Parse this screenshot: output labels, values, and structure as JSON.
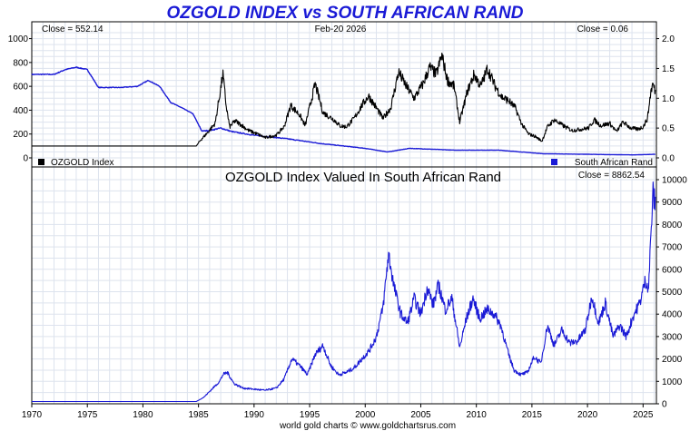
{
  "chart_data": [
    {
      "type": "line",
      "title": "OZGOLD INDEX vs SOUTH AFRICAN RAND",
      "date_label": "Feb-20  2026",
      "close_left": "Close = 552.14",
      "close_right": "Close = 0.06",
      "x_ticks": [
        "1970",
        "1975",
        "1980",
        "1985",
        "1990",
        "1995",
        "2000",
        "2005",
        "2010",
        "2015",
        "2020",
        "2025"
      ],
      "xlim": [
        1970,
        2026.2
      ],
      "left_axis": {
        "ylim": [
          0,
          1050
        ],
        "ticks": [
          "0",
          "200",
          "400",
          "600",
          "800",
          "1000"
        ]
      },
      "right_axis": {
        "ylim": [
          0,
          2.1
        ],
        "ticks": [
          "0.0",
          "0.5",
          "1.0",
          "1.5",
          "2.0"
        ]
      },
      "series": [
        {
          "name": "OZGOLD Index",
          "axis": "left",
          "color": "#000000",
          "x": [
            1970,
            1984.8,
            1985.2,
            1985.8,
            1986.5,
            1987.2,
            1987.5,
            1987.8,
            1988.3,
            1988.8,
            1989.5,
            1990.3,
            1991,
            1992,
            1992.7,
            1993.3,
            1994.1,
            1994.6,
            1995.5,
            1996.2,
            1997.2,
            1997.7,
            1998.3,
            1999,
            1999.7,
            2000.3,
            2001,
            2001.6,
            2002.3,
            2003,
            2003.7,
            2004.4,
            2005.2,
            2005.8,
            2006.4,
            2006.9,
            2007.4,
            2008,
            2008.5,
            2009.2,
            2009.8,
            2010.4,
            2011,
            2011.7,
            2012.3,
            2012.9,
            2013.5,
            2014.1,
            2014.7,
            2015.3,
            2015.9,
            2016.4,
            2017,
            2017.8,
            2018.6,
            2019.4,
            2020.1,
            2020.6,
            2021.2,
            2022,
            2022.6,
            2023.2,
            2023.9,
            2024.5,
            2025,
            2025.4,
            2025.7,
            2025.9,
            2026.1
          ],
          "values": [
            100,
            100,
            150,
            210,
            290,
            700,
            430,
            260,
            310,
            280,
            230,
            200,
            170,
            190,
            260,
            440,
            360,
            270,
            620,
            380,
            320,
            270,
            260,
            330,
            440,
            520,
            420,
            330,
            420,
            720,
            600,
            500,
            620,
            760,
            700,
            860,
            650,
            600,
            300,
            560,
            700,
            600,
            750,
            600,
            510,
            480,
            420,
            280,
            200,
            180,
            140,
            260,
            320,
            270,
            230,
            240,
            250,
            320,
            270,
            290,
            220,
            300,
            250,
            240,
            260,
            330,
            560,
            620,
            552
          ]
        },
        {
          "name": "South African Rand",
          "axis": "right",
          "color": "#1a1ad6",
          "x": [
            1970,
            1972,
            1973,
            1974,
            1975,
            1976,
            1978,
            1979.5,
            1980.5,
            1981.5,
            1982.5,
            1983.5,
            1984.5,
            1985.3,
            1986,
            1987,
            1988,
            1990,
            1993,
            1996,
            1998,
            2000,
            2002,
            2004,
            2008,
            2012,
            2016,
            2020,
            2024,
            2026.1
          ],
          "values": [
            1.4,
            1.4,
            1.48,
            1.52,
            1.48,
            1.18,
            1.18,
            1.2,
            1.3,
            1.2,
            0.93,
            0.84,
            0.74,
            0.45,
            0.46,
            0.5,
            0.44,
            0.38,
            0.32,
            0.24,
            0.2,
            0.16,
            0.1,
            0.16,
            0.13,
            0.13,
            0.07,
            0.06,
            0.05,
            0.06
          ]
        }
      ],
      "legend": [
        "OZGOLD Index",
        "South African Rand"
      ]
    },
    {
      "type": "line",
      "title": "OZGOLD Index Valued In South African Rand",
      "close": "Close = 8862.54",
      "xlim": [
        1970,
        2026.2
      ],
      "right_axis": {
        "ylim": [
          0,
          10000
        ],
        "ticks": [
          "0",
          "1000",
          "2000",
          "3000",
          "4000",
          "5000",
          "6000",
          "7000",
          "8000",
          "9000",
          "10000"
        ]
      },
      "series": [
        {
          "name": "OZGOLD Index Valued In South African Rand",
          "color": "#1a1ad6",
          "x": [
            1970,
            1984.8,
            1985.5,
            1986.3,
            1986.9,
            1987.2,
            1987.6,
            1988.2,
            1989,
            1990,
            1991,
            1992,
            1992.7,
            1993.4,
            1994.1,
            1994.8,
            1995.5,
            1996.2,
            1996.9,
            1997.6,
            1998.3,
            1999,
            1999.7,
            2000.4,
            2001,
            2001.6,
            2002.1,
            2002.6,
            2003.2,
            2003.8,
            2004.4,
            2005,
            2005.6,
            2006.1,
            2006.6,
            2007.2,
            2007.8,
            2008.5,
            2009.1,
            2009.7,
            2010.3,
            2011,
            2011.6,
            2012.2,
            2012.9,
            2013.4,
            2014,
            2014.6,
            2015.2,
            2015.8,
            2016.4,
            2017,
            2017.7,
            2018.4,
            2019.1,
            2019.8,
            2020.4,
            2021,
            2021.6,
            2022.3,
            2022.9,
            2023.5,
            2024.1,
            2024.7,
            2025.2,
            2025.5,
            2025.7,
            2025.9,
            2026.1
          ],
          "values": [
            100,
            100,
            300,
            700,
            1000,
            1300,
            1400,
            900,
            700,
            650,
            600,
            700,
            1100,
            2000,
            1700,
            1300,
            2200,
            2600,
            1700,
            1300,
            1400,
            1600,
            2000,
            2400,
            3000,
            4300,
            6700,
            5200,
            4000,
            3600,
            4700,
            4000,
            5200,
            4400,
            5300,
            4200,
            4700,
            2500,
            3800,
            4700,
            3800,
            4200,
            4000,
            3500,
            2200,
            1500,
            1300,
            1400,
            2100,
            1800,
            3500,
            2600,
            3300,
            2700,
            2800,
            3300,
            4800,
            3600,
            4500,
            3000,
            3500,
            3000,
            3900,
            4500,
            5500,
            5200,
            7500,
            9400,
            8862
          ]
        }
      ]
    }
  ],
  "footer": "world gold charts © www.goldchartsrus.com"
}
